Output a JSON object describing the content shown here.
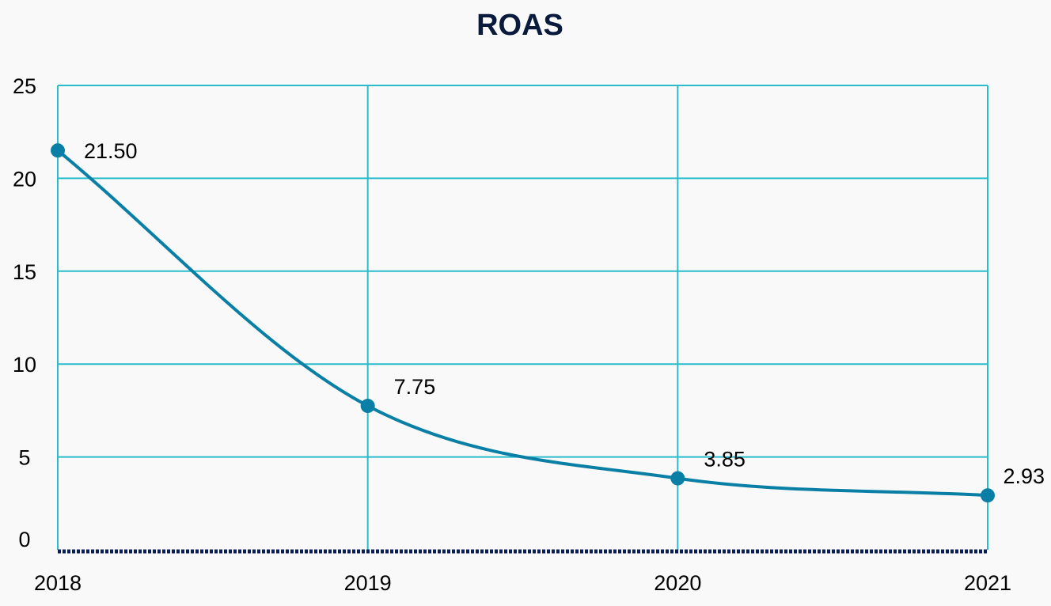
{
  "chart_data": {
    "type": "line",
    "title": "ROAS",
    "xlabel": "",
    "ylabel": "",
    "categories": [
      "2018",
      "2019",
      "2020",
      "2021"
    ],
    "series": [
      {
        "values": [
          21.5,
          7.75,
          3.85,
          2.93
        ]
      }
    ],
    "data_labels": [
      "21.50",
      "7.75",
      "3.85",
      "2.93"
    ],
    "ylim": [
      0,
      25
    ],
    "yticks": [
      0,
      5,
      10,
      15,
      20,
      25
    ],
    "ytick_labels": [
      "0",
      "5",
      "10",
      "15",
      "20",
      "25"
    ],
    "grid": true,
    "smooth": true,
    "legend": "none",
    "colors": {
      "line": "#0a7fa6",
      "marker": "#0a7fa6",
      "grid": "#2bbccc",
      "baseline": "#0a1f5a",
      "title": "#0a1a3c",
      "background": "#f9f9f9"
    }
  }
}
